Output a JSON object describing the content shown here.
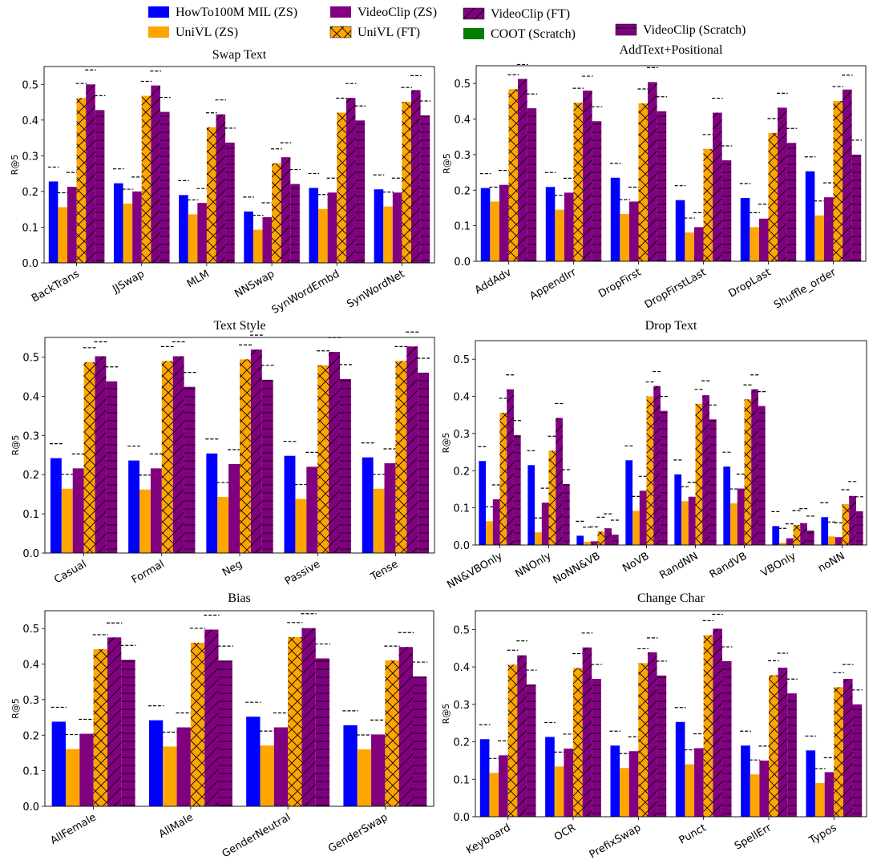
{
  "legend": {
    "items": [
      {
        "label": "HowTo100M MIL (ZS)",
        "color": "#0000ff",
        "hatch": "none"
      },
      {
        "label": "UniVL (ZS)",
        "color": "#ffa500",
        "hatch": "none"
      },
      {
        "label": "VideoClip (ZS)",
        "color": "#800080",
        "hatch": "none"
      },
      {
        "label": "UniVL (FT)",
        "color": "#ffa500",
        "hatch": "cross"
      },
      {
        "label": "VideoClip (FT)",
        "color": "#800080",
        "hatch": "diag"
      },
      {
        "label": "COOT (Scratch)",
        "color": "#008000",
        "hatch": "none"
      },
      {
        "label": "VideoClip (Scratch)",
        "color": "#800080",
        "hatch": "horiz"
      }
    ]
  },
  "chart_data": [
    {
      "type": "bar",
      "title": "Swap Text",
      "ylabel": "R@5",
      "ylim": [
        0,
        0.55
      ],
      "yticks": [
        "0.0",
        "0.1",
        "0.2",
        "0.3",
        "0.4",
        "0.5"
      ],
      "categories": [
        "BackTrans",
        "JJSwap",
        "MLM",
        "NNSwap",
        "SynWordEmbd",
        "SynWordNet"
      ],
      "series": [
        {
          "name": "HowTo100M MIL (ZS)",
          "values": [
            0.228,
            0.223,
            0.19,
            0.144,
            0.21,
            0.206
          ]
        },
        {
          "name": "UniVL (ZS)",
          "values": [
            0.156,
            0.166,
            0.136,
            0.093,
            0.151,
            0.158
          ]
        },
        {
          "name": "VideoClip (ZS)",
          "values": [
            0.213,
            0.2,
            0.168,
            0.128,
            0.197,
            0.197
          ]
        },
        {
          "name": "UniVL (FT)",
          "values": [
            0.462,
            0.468,
            0.38,
            0.279,
            0.421,
            0.451
          ]
        },
        {
          "name": "VideoClip (FT)",
          "values": [
            0.5,
            0.497,
            0.416,
            0.296,
            0.462,
            0.484
          ]
        },
        {
          "name": "VideoClip (Scratch)",
          "values": [
            0.428,
            0.423,
            0.337,
            0.221,
            0.399,
            0.413
          ]
        }
      ]
    },
    {
      "type": "bar",
      "title": "AddText+Positional",
      "ylabel": "R@5",
      "ylim": [
        0,
        0.55
      ],
      "yticks": [
        "0.0",
        "0.1",
        "0.2",
        "0.3",
        "0.4",
        "0.5"
      ],
      "categories": [
        "AddAdv",
        "AppendIrr",
        "DropFirst",
        "DropFirstLast",
        "DropLast",
        "Shuffle_order"
      ],
      "series": [
        {
          "name": "HowTo100M MIL (ZS)",
          "values": [
            0.206,
            0.209,
            0.235,
            0.172,
            0.178,
            0.253
          ]
        },
        {
          "name": "UniVL (ZS)",
          "values": [
            0.168,
            0.145,
            0.133,
            0.081,
            0.096,
            0.129
          ]
        },
        {
          "name": "VideoClip (ZS)",
          "values": [
            0.215,
            0.193,
            0.168,
            0.096,
            0.12,
            0.18
          ]
        },
        {
          "name": "UniVL (FT)",
          "values": [
            0.484,
            0.446,
            0.444,
            0.316,
            0.361,
            0.451
          ]
        },
        {
          "name": "VideoClip (FT)",
          "values": [
            0.513,
            0.48,
            0.504,
            0.418,
            0.432,
            0.483
          ]
        },
        {
          "name": "VideoClip (Scratch)",
          "values": [
            0.43,
            0.394,
            0.422,
            0.284,
            0.333,
            0.3
          ]
        }
      ]
    },
    {
      "type": "bar",
      "title": "Text Style",
      "ylabel": "R@5",
      "ylim": [
        0,
        0.55
      ],
      "yticks": [
        "0.0",
        "0.1",
        "0.2",
        "0.3",
        "0.4",
        "0.5"
      ],
      "categories": [
        "Casual",
        "Formal",
        "Neg",
        "Passive",
        "Tense"
      ],
      "series": [
        {
          "name": "HowTo100M MIL (ZS)",
          "values": [
            0.242,
            0.236,
            0.254,
            0.248,
            0.244
          ]
        },
        {
          "name": "UniVL (ZS)",
          "values": [
            0.164,
            0.162,
            0.143,
            0.138,
            0.164
          ]
        },
        {
          "name": "VideoClip (ZS)",
          "values": [
            0.216,
            0.216,
            0.227,
            0.22,
            0.229
          ]
        },
        {
          "name": "UniVL (FT)",
          "values": [
            0.487,
            0.49,
            0.494,
            0.479,
            0.49
          ]
        },
        {
          "name": "VideoClip (FT)",
          "values": [
            0.502,
            0.502,
            0.519,
            0.513,
            0.527
          ]
        },
        {
          "name": "VideoClip (Scratch)",
          "values": [
            0.438,
            0.424,
            0.442,
            0.444,
            0.46
          ]
        }
      ]
    },
    {
      "type": "bar",
      "title": "Drop Text",
      "ylabel": "R@5",
      "ylim": [
        0,
        0.55
      ],
      "yticks": [
        "0.0",
        "0.1",
        "0.2",
        "0.3",
        "0.4",
        "0.5"
      ],
      "categories": [
        "NN&VBOnly",
        "NNOnly",
        "NoNN&VB",
        "NoVB",
        "RandNN",
        "RandVB",
        "VBOnly",
        "noNN"
      ],
      "series": [
        {
          "name": "HowTo100M MIL (ZS)",
          "values": [
            0.226,
            0.215,
            0.025,
            0.228,
            0.19,
            0.211,
            0.051,
            0.075
          ]
        },
        {
          "name": "UniVL (ZS)",
          "values": [
            0.064,
            0.034,
            0.009,
            0.092,
            0.118,
            0.112,
            0.006,
            0.023
          ]
        },
        {
          "name": "VideoClip (ZS)",
          "values": [
            0.123,
            0.114,
            0.01,
            0.146,
            0.13,
            0.152,
            0.018,
            0.021
          ]
        },
        {
          "name": "UniVL (FT)",
          "values": [
            0.356,
            0.254,
            0.036,
            0.4,
            0.38,
            0.392,
            0.054,
            0.11
          ]
        },
        {
          "name": "VideoClip (FT)",
          "values": [
            0.419,
            0.342,
            0.045,
            0.428,
            0.403,
            0.419,
            0.059,
            0.132
          ]
        },
        {
          "name": "VideoClip (Scratch)",
          "values": [
            0.296,
            0.164,
            0.028,
            0.361,
            0.338,
            0.374,
            0.039,
            0.091
          ]
        }
      ]
    },
    {
      "type": "bar",
      "title": "Bias",
      "ylabel": "R@5",
      "ylim": [
        0,
        0.55
      ],
      "yticks": [
        "0.0",
        "0.1",
        "0.2",
        "0.3",
        "0.4",
        "0.5"
      ],
      "categories": [
        "AllFemale",
        "AllMale",
        "GenderNeutral",
        "GenderSwap"
      ],
      "series": [
        {
          "name": "HowTo100M MIL (ZS)",
          "values": [
            0.238,
            0.242,
            0.252,
            0.228
          ]
        },
        {
          "name": "UniVL (ZS)",
          "values": [
            0.161,
            0.168,
            0.171,
            0.16
          ]
        },
        {
          "name": "VideoClip (ZS)",
          "values": [
            0.204,
            0.222,
            0.222,
            0.202
          ]
        },
        {
          "name": "UniVL (FT)",
          "values": [
            0.442,
            0.46,
            0.476,
            0.41
          ]
        },
        {
          "name": "VideoClip (FT)",
          "values": [
            0.475,
            0.497,
            0.501,
            0.448
          ]
        },
        {
          "name": "VideoClip (Scratch)",
          "values": [
            0.412,
            0.41,
            0.416,
            0.365
          ]
        }
      ]
    },
    {
      "type": "bar",
      "title": "Change Char",
      "ylabel": "R@5",
      "ylim": [
        0,
        0.55
      ],
      "yticks": [
        "0.0",
        "0.1",
        "0.2",
        "0.3",
        "0.4",
        "0.5"
      ],
      "categories": [
        "Keyboard",
        "OCR",
        "PrefixSwap",
        "Punct",
        "SpellErr",
        "Typos"
      ],
      "series": [
        {
          "name": "HowTo100M MIL (ZS)",
          "values": [
            0.207,
            0.213,
            0.19,
            0.253,
            0.19,
            0.177
          ]
        },
        {
          "name": "UniVL (ZS)",
          "values": [
            0.117,
            0.134,
            0.13,
            0.14,
            0.113,
            0.09
          ]
        },
        {
          "name": "VideoClip (ZS)",
          "values": [
            0.164,
            0.182,
            0.175,
            0.183,
            0.15,
            0.119
          ]
        },
        {
          "name": "UniVL (FT)",
          "values": [
            0.406,
            0.397,
            0.41,
            0.485,
            0.378,
            0.346
          ]
        },
        {
          "name": "VideoClip (FT)",
          "values": [
            0.431,
            0.452,
            0.439,
            0.502,
            0.398,
            0.368
          ]
        },
        {
          "name": "VideoClip (Scratch)",
          "values": [
            0.353,
            0.368,
            0.377,
            0.415,
            0.329,
            0.3
          ]
        }
      ]
    }
  ]
}
